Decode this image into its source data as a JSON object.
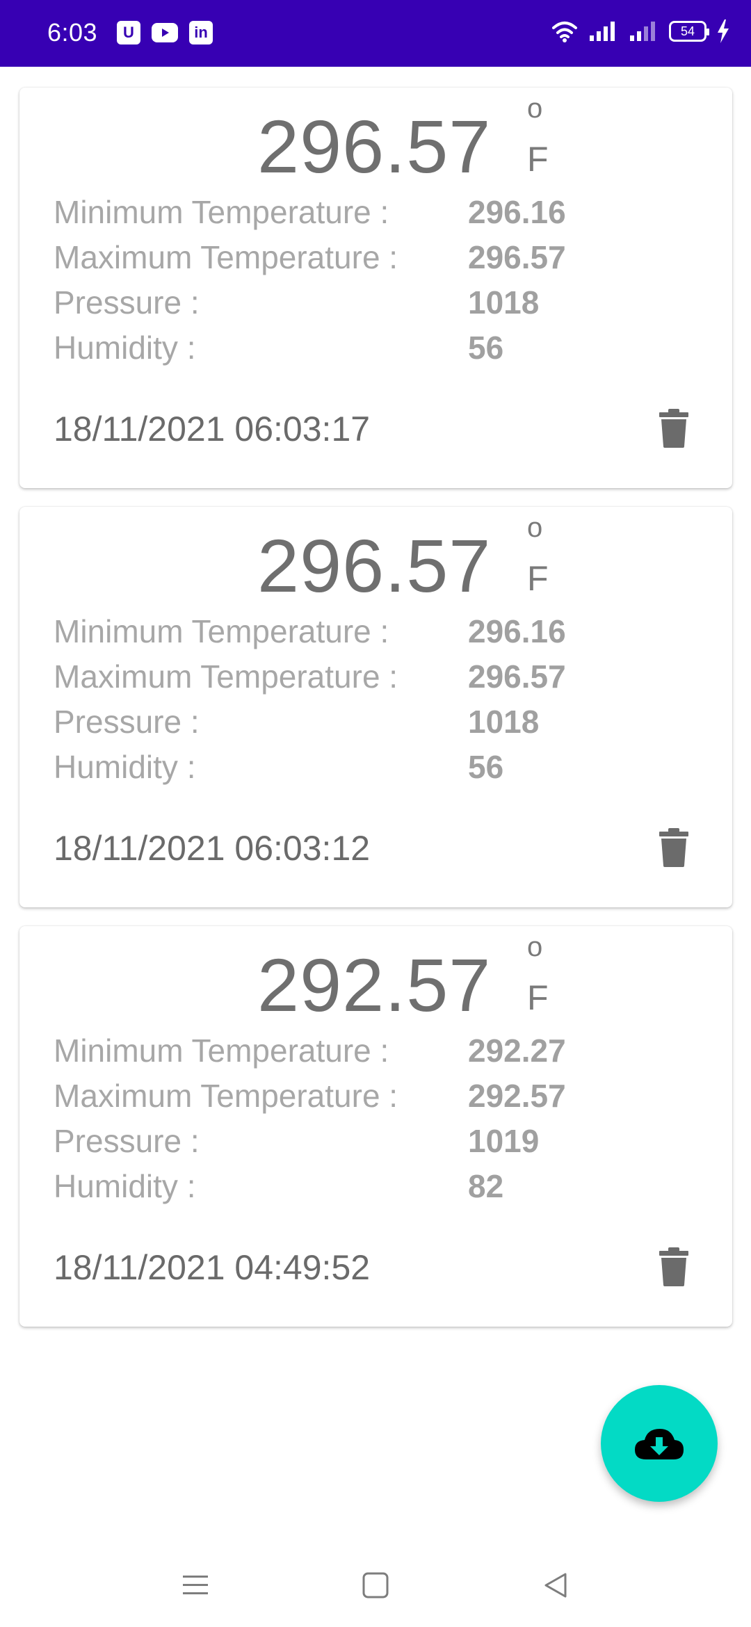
{
  "status_bar": {
    "time": "6:03",
    "battery": "54",
    "notif_u": "U",
    "notif_in": "in",
    "icons": [
      "u-app-icon",
      "youtube-icon",
      "linkedin-icon",
      "wifi-icon",
      "signal-icon",
      "signal-icon",
      "battery-icon",
      "charging-icon"
    ]
  },
  "records": [
    {
      "temperature": "296.57",
      "degree_symbol": "o",
      "unit": "F",
      "min_label": "Minimum Temperature :",
      "min_value": "296.16",
      "max_label": "Maximum Temperature :",
      "max_value": "296.57",
      "pressure_label": "Pressure :",
      "pressure_value": "1018",
      "humidity_label": "Humidity :",
      "humidity_value": "56",
      "timestamp": "18/11/2021 06:03:17"
    },
    {
      "temperature": "296.57",
      "degree_symbol": "o",
      "unit": "F",
      "min_label": "Minimum Temperature :",
      "min_value": "296.16",
      "max_label": "Maximum Temperature :",
      "max_value": "296.57",
      "pressure_label": "Pressure :",
      "pressure_value": "1018",
      "humidity_label": "Humidity :",
      "humidity_value": "56",
      "timestamp": "18/11/2021 06:03:12"
    },
    {
      "temperature": "292.57",
      "degree_symbol": "o",
      "unit": "F",
      "min_label": "Minimum Temperature :",
      "min_value": "292.27",
      "max_label": "Maximum Temperature :",
      "max_value": "292.57",
      "pressure_label": "Pressure :",
      "pressure_value": "1019",
      "humidity_label": "Humidity :",
      "humidity_value": "82",
      "timestamp": "18/11/2021 04:49:52"
    }
  ],
  "fab": {
    "icon": "cloud-download-icon"
  },
  "nav_bar": {
    "icons": [
      "menu-icon",
      "home-square-icon",
      "back-triangle-icon"
    ]
  },
  "colors": {
    "status_bar": "#3700b3",
    "fab": "#03dac5",
    "temperature_text": "#6f6f6f",
    "label_text": "#a7a7a7"
  }
}
